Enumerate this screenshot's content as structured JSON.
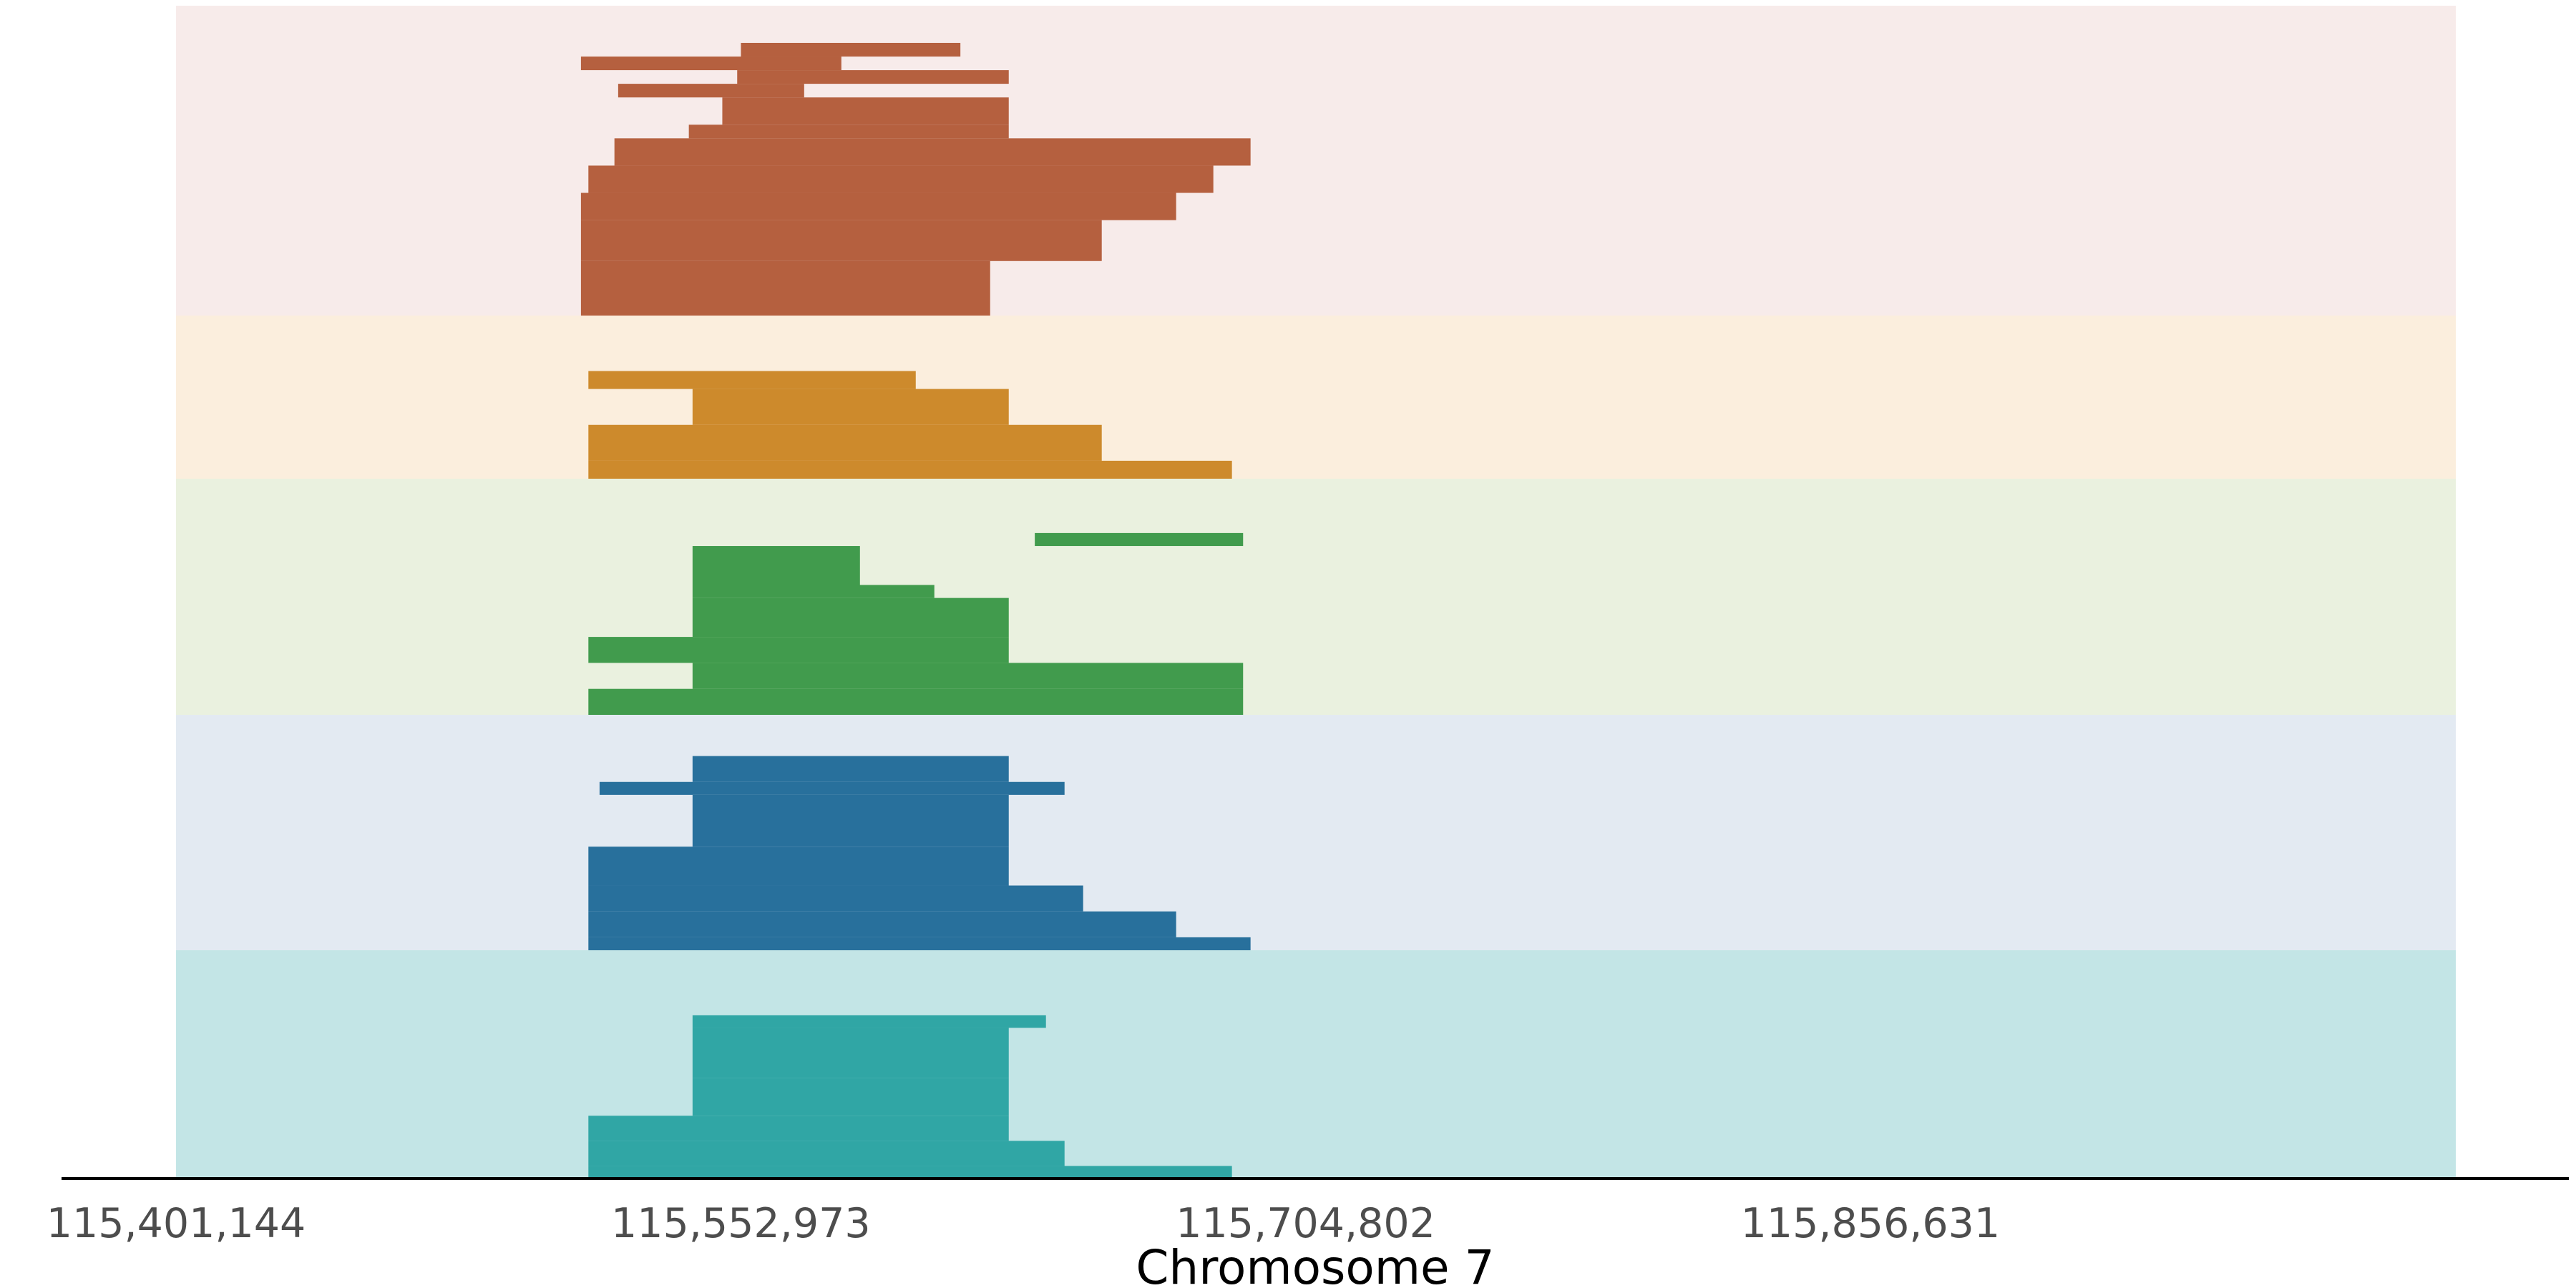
{
  "chart_data": {
    "type": "bar",
    "subtype": "stacked read/segment coverage tracks",
    "xlabel": "Chromosome 7",
    "ylabel": "",
    "title": "",
    "xlim": [
      115401144,
      116014000
    ],
    "x_ticks": [
      115401144,
      115552973,
      115704802,
      115856631
    ],
    "x_tick_labels": [
      "115,401,144",
      "115,552,973",
      "115,704,802",
      "115,856,631"
    ],
    "grid": false,
    "legend": "none",
    "tracks": [
      {
        "color": "#b5603f",
        "bg": "#f7ebea",
        "max_depth": 20,
        "segments": [
          {
            "start": 115510000,
            "end": 115620000,
            "depth": 4
          },
          {
            "start": 115510000,
            "end": 115650000,
            "depth": 3
          },
          {
            "start": 115510000,
            "end": 115670000,
            "depth": 2
          },
          {
            "start": 115512000,
            "end": 115680000,
            "depth": 2
          },
          {
            "start": 115519000,
            "end": 115690000,
            "depth": 2
          },
          {
            "start": 115539000,
            "end": 115625000,
            "depth": 1
          },
          {
            "start": 115548000,
            "end": 115625000,
            "depth": 2
          },
          {
            "start": 115520000,
            "end": 115570000,
            "depth": 1
          },
          {
            "start": 115552000,
            "end": 115625000,
            "depth": 1
          },
          {
            "start": 115510000,
            "end": 115580000,
            "depth": 1
          },
          {
            "start": 115553000,
            "end": 115612000,
            "depth": 1
          }
        ]
      },
      {
        "color": "#cd8a2c",
        "bg": "#fbeedd",
        "max_depth": 8,
        "segments": [
          {
            "start": 115512000,
            "end": 115685000,
            "depth": 1
          },
          {
            "start": 115512000,
            "end": 115650000,
            "depth": 2
          },
          {
            "start": 115540000,
            "end": 115625000,
            "depth": 2
          },
          {
            "start": 115512000,
            "end": 115600000,
            "depth": 1
          }
        ]
      },
      {
        "color": "#419b4d",
        "bg": "#eaf1df",
        "max_depth": 16,
        "segments": [
          {
            "start": 115512000,
            "end": 115688000,
            "depth": 2
          },
          {
            "start": 115540000,
            "end": 115688000,
            "depth": 2
          },
          {
            "start": 115512000,
            "end": 115625000,
            "depth": 2
          },
          {
            "start": 115540000,
            "end": 115625000,
            "depth": 3
          },
          {
            "start": 115540000,
            "end": 115605000,
            "depth": 1
          },
          {
            "start": 115540000,
            "end": 115585000,
            "depth": 3
          },
          {
            "start": 115632000,
            "end": 115688000,
            "depth": 1
          }
        ]
      },
      {
        "color": "#28709c",
        "bg": "#e3eaf2",
        "max_depth": 16,
        "segments": [
          {
            "start": 115512000,
            "end": 115690000,
            "depth": 1
          },
          {
            "start": 115512000,
            "end": 115670000,
            "depth": 2
          },
          {
            "start": 115512000,
            "end": 115645000,
            "depth": 2
          },
          {
            "start": 115512000,
            "end": 115625000,
            "depth": 3
          },
          {
            "start": 115540000,
            "end": 115625000,
            "depth": 4
          },
          {
            "start": 115515000,
            "end": 115640000,
            "depth": 1
          },
          {
            "start": 115540000,
            "end": 115625000,
            "depth": 2
          }
        ]
      },
      {
        "color": "#30a6a5",
        "bg": "#c3e5e6",
        "max_depth": 16,
        "segments": [
          {
            "start": 115512000,
            "end": 115685000,
            "depth": 1
          },
          {
            "start": 115512000,
            "end": 115640000,
            "depth": 2
          },
          {
            "start": 115512000,
            "end": 115625000,
            "depth": 2
          },
          {
            "start": 115540000,
            "end": 115625000,
            "depth": 3
          },
          {
            "start": 115540000,
            "end": 115625000,
            "depth": 4
          },
          {
            "start": 115540000,
            "end": 115635000,
            "depth": 1
          }
        ]
      }
    ]
  }
}
